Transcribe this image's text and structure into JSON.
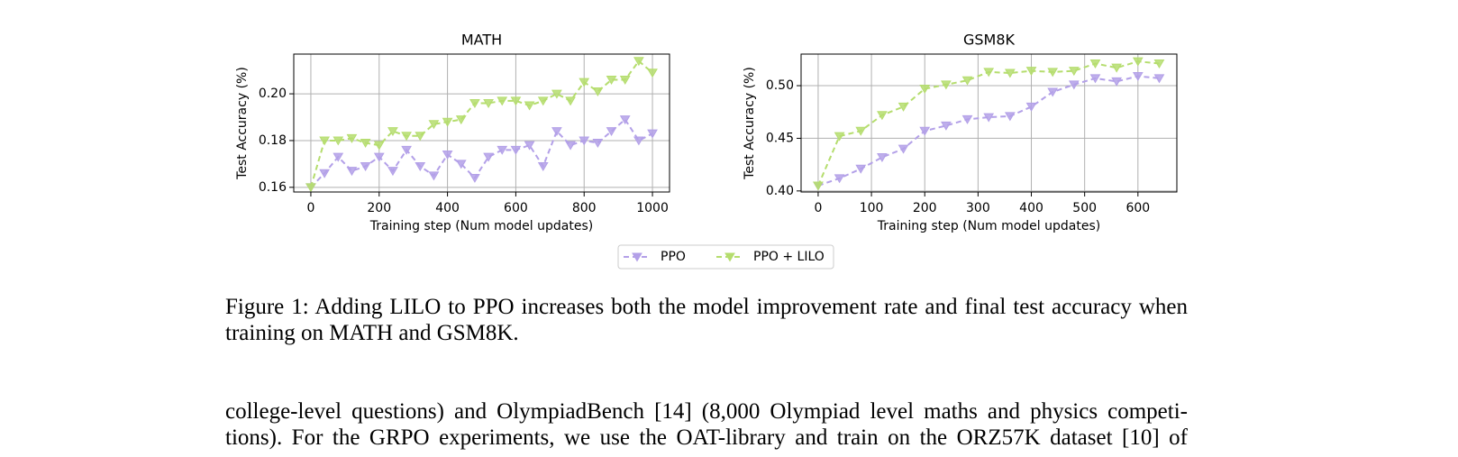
{
  "chart_data": [
    {
      "type": "line",
      "title": "MATH",
      "x_label": "Training step (Num model updates)",
      "y_label": "Test Accuracy (%)",
      "x": [
        0,
        40,
        80,
        120,
        160,
        200,
        240,
        280,
        320,
        360,
        400,
        440,
        480,
        520,
        560,
        600,
        640,
        680,
        720,
        760,
        800,
        840,
        880,
        920,
        960,
        1000
      ],
      "series": [
        {
          "name": "PPO",
          "color": "#b3a0e8",
          "values": [
            0.16,
            0.166,
            0.173,
            0.167,
            0.169,
            0.173,
            0.167,
            0.176,
            0.169,
            0.165,
            0.174,
            0.17,
            0.164,
            0.173,
            0.176,
            0.176,
            0.178,
            0.169,
            0.184,
            0.178,
            0.18,
            0.179,
            0.184,
            0.189,
            0.18,
            0.183
          ]
        },
        {
          "name": "PPO + LILO",
          "color": "#b5dd6e",
          "values": [
            0.16,
            0.18,
            0.18,
            0.181,
            0.179,
            0.178,
            0.184,
            0.182,
            0.182,
            0.187,
            0.188,
            0.189,
            0.196,
            0.196,
            0.197,
            0.197,
            0.195,
            0.197,
            0.2,
            0.197,
            0.205,
            0.201,
            0.206,
            0.206,
            0.214,
            0.209
          ]
        }
      ],
      "xlim": [
        -50,
        1050
      ],
      "xticks": [
        0,
        200,
        400,
        600,
        800,
        1000
      ],
      "ylim": [
        0.158,
        0.217
      ],
      "yticks": [
        0.16,
        0.18,
        {
          "value": 0.2,
          "label": "0.20"
        }
      ],
      "grid": true
    },
    {
      "type": "line",
      "title": "GSM8K",
      "x_label": "Training step (Num model updates)",
      "y_label": "Test Accuracy (%)",
      "x": [
        0,
        40,
        80,
        120,
        160,
        200,
        240,
        280,
        320,
        360,
        400,
        440,
        480,
        520,
        560,
        600,
        640
      ],
      "series": [
        {
          "name": "PPO",
          "color": "#b3a0e8",
          "values": [
            0.405,
            0.412,
            0.421,
            0.432,
            0.44,
            0.457,
            0.462,
            0.468,
            0.47,
            0.471,
            0.48,
            0.494,
            0.501,
            0.507,
            0.504,
            0.509,
            0.507
          ]
        },
        {
          "name": "PPO + LILO",
          "color": "#b5dd6e",
          "values": [
            0.405,
            0.452,
            0.457,
            0.472,
            0.48,
            0.497,
            0.501,
            0.505,
            0.513,
            0.512,
            0.514,
            0.513,
            0.514,
            0.521,
            0.517,
            0.523,
            0.521
          ]
        }
      ],
      "xlim": [
        -32,
        673
      ],
      "xticks": [
        0,
        100,
        200,
        300,
        400,
        500,
        600
      ],
      "ylim": [
        0.399,
        0.53
      ],
      "yticks": [
        {
          "value": 0.4,
          "label": "0.40"
        },
        0.45,
        {
          "value": 0.5,
          "label": "0.50"
        }
      ],
      "grid": true
    }
  ],
  "caption": "Figure 1: Adding LILO to PPO increases both the model improvement rate and final test accuracy when training on MATH and GSM8K.",
  "body": [
    "college-level questions) and OlympiadBench [14] (8,000 Olympiad level maths and physics competi-",
    "tions). For the GRPO experiments, we use the OAT-library and train on the ORZ57K dataset [10] of"
  ]
}
